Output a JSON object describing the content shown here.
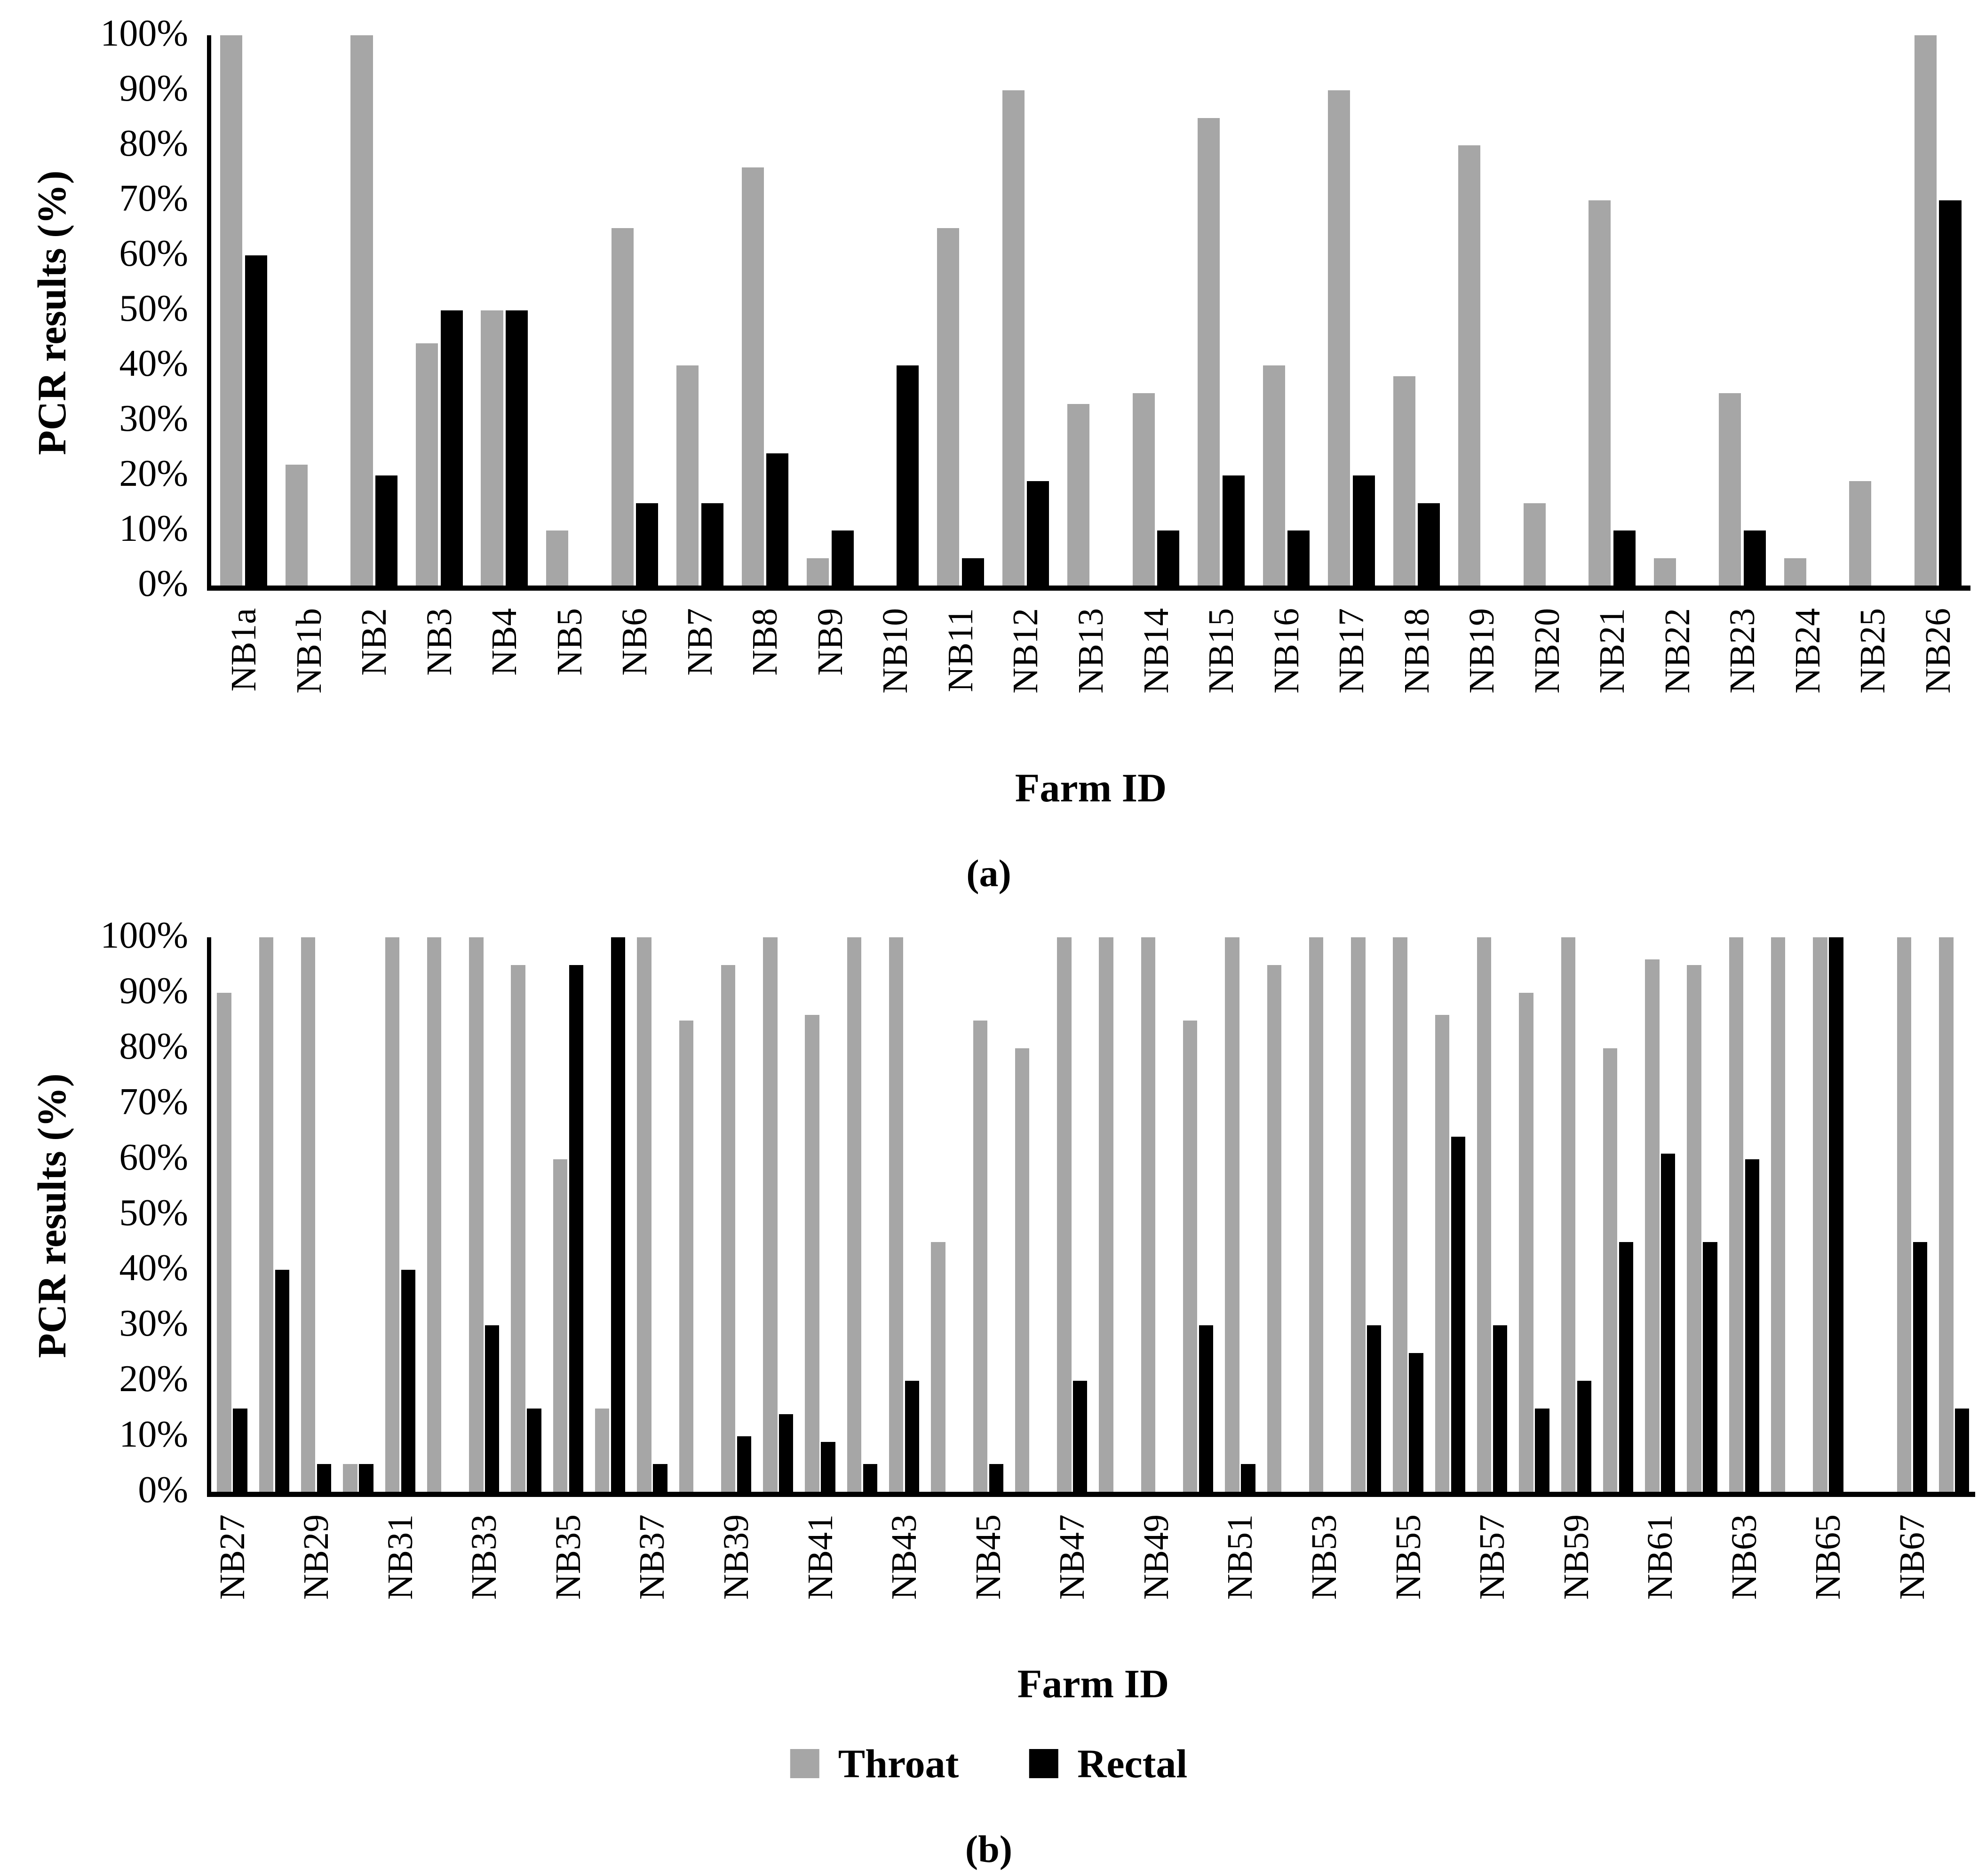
{
  "page": {
    "background": "#ffffff"
  },
  "colors": {
    "throat": "#a6a6a6",
    "rectal": "#000000",
    "axis": "#000000"
  },
  "legend": {
    "items": [
      {
        "name": "throat",
        "label": "Throat",
        "color": "#a6a6a6"
      },
      {
        "name": "rectal",
        "label": "Rectal",
        "color": "#000000"
      }
    ]
  },
  "captions": {
    "panel_a": "(a)",
    "panel_b": "(b)"
  },
  "chart_data": [
    {
      "id": "a",
      "type": "bar",
      "title": "",
      "xlabel": "Farm ID",
      "ylabel": "PCR results (%)",
      "ylim": [
        0,
        100
      ],
      "grid": false,
      "legend_position": "none",
      "y_ticks": [
        "0%",
        "10%",
        "20%",
        "30%",
        "40%",
        "50%",
        "60%",
        "70%",
        "80%",
        "90%",
        "100%"
      ],
      "label_every": 1,
      "categories": [
        "NB1a",
        "NB1b",
        "NB2",
        "NB3",
        "NB4",
        "NB5",
        "NB6",
        "NB7",
        "NB8",
        "NB9",
        "NB10",
        "NB11",
        "NB12",
        "NB13",
        "NB14",
        "NB15",
        "NB16",
        "NB17",
        "NB18",
        "NB19",
        "NB20",
        "NB21",
        "NB22",
        "NB23",
        "NB24",
        "NB25",
        "NB26"
      ],
      "series": [
        {
          "name": "Throat",
          "color": "#a6a6a6",
          "values": [
            100,
            22,
            100,
            44,
            50,
            10,
            65,
            40,
            76,
            5,
            0,
            65,
            90,
            33,
            35,
            85,
            40,
            90,
            38,
            80,
            15,
            70,
            5,
            35,
            5,
            19,
            100
          ]
        },
        {
          "name": "Rectal",
          "color": "#000000",
          "values": [
            60,
            0,
            20,
            50,
            50,
            0,
            15,
            15,
            24,
            10,
            40,
            5,
            19,
            0,
            10,
            20,
            10,
            20,
            15,
            0,
            0,
            10,
            0,
            10,
            0,
            0,
            70
          ]
        }
      ]
    },
    {
      "id": "b",
      "type": "bar",
      "title": "",
      "xlabel": "Farm ID",
      "ylabel": "PCR results (%)",
      "ylim": [
        0,
        100
      ],
      "grid": false,
      "legend_position": "bottom",
      "y_ticks": [
        "0%",
        "10%",
        "20%",
        "30%",
        "40%",
        "50%",
        "60%",
        "70%",
        "80%",
        "90%",
        "100%"
      ],
      "label_every": 2,
      "categories": [
        "NB27",
        "NB28",
        "NB29",
        "NB30",
        "NB31",
        "NB32",
        "NB33",
        "NB34",
        "NB35",
        "NB36",
        "NB37",
        "NB38",
        "NB39",
        "NB40",
        "NB41",
        "NB42",
        "NB43",
        "NB44",
        "NB45",
        "NB46",
        "NB47",
        "NB48",
        "NB49",
        "NB50",
        "NB51",
        "NB52",
        "NB53",
        "NB54",
        "NB55",
        "NB56",
        "NB57",
        "NB58",
        "NB59",
        "NB60",
        "NB61",
        "NB62",
        "NB63",
        "NB64",
        "NB65",
        "NB66",
        "NB67",
        "NB68"
      ],
      "x_tick_labels_shown": [
        "NB27",
        "NB29",
        "NB31",
        "NB33",
        "NB35",
        "NB37",
        "NB39",
        "NB41",
        "NB43",
        "NB45",
        "NB47",
        "NB49",
        "NB51",
        "NB53",
        "NB55",
        "NB57",
        "NB59",
        "NB61",
        "NB63",
        "NB65",
        "NB67"
      ],
      "series": [
        {
          "name": "Throat",
          "color": "#a6a6a6",
          "values": [
            90,
            100,
            100,
            5,
            100,
            100,
            100,
            95,
            60,
            15,
            100,
            85,
            95,
            100,
            86,
            100,
            100,
            45,
            85,
            80,
            100,
            100,
            100,
            85,
            100,
            95,
            100,
            100,
            100,
            86,
            100,
            90,
            100,
            80,
            96,
            95,
            100,
            100,
            100,
            0,
            100,
            100
          ]
        },
        {
          "name": "Rectal",
          "color": "#000000",
          "values": [
            15,
            40,
            5,
            5,
            40,
            0,
            30,
            15,
            95,
            100,
            5,
            0,
            10,
            14,
            9,
            5,
            20,
            0,
            5,
            0,
            20,
            0,
            0,
            30,
            5,
            0,
            0,
            30,
            25,
            64,
            30,
            15,
            20,
            45,
            61,
            45,
            60,
            0,
            100,
            0,
            45,
            15
          ]
        }
      ]
    }
  ],
  "layout_note": ""
}
